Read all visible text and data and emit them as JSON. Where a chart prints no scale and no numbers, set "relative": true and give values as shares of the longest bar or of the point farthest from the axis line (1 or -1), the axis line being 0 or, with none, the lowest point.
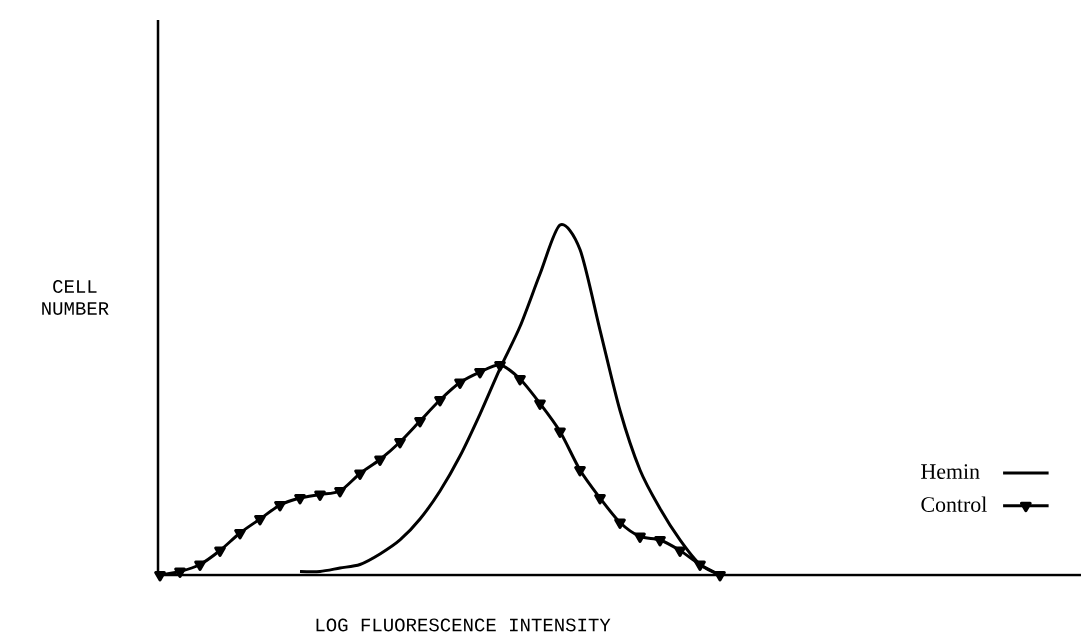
{
  "chart_data": {
    "type": "line",
    "relative": true,
    "xlabel": "LOG FLUORESCENCE INTENSITY",
    "ylabel": "CELL NUMBER",
    "legend": "right",
    "categories": [
      null,
      null,
      null,
      null,
      null,
      null,
      null,
      null,
      null,
      null,
      null,
      null,
      null,
      null,
      null,
      null,
      null,
      null,
      null,
      null,
      null,
      null,
      null,
      null,
      null,
      null,
      null,
      null,
      null,
      null,
      null,
      null,
      null,
      null,
      null,
      null,
      null,
      null,
      null,
      null,
      null,
      null,
      null,
      null,
      null,
      null,
      null
    ],
    "series": [
      {
        "name": "Hemin",
        "color": "#000000",
        "marker": "none",
        "values": [
          null,
          null,
          null,
          null,
          null,
          null,
          null,
          0.01,
          0.01,
          0.02,
          0.03,
          0.06,
          0.1,
          0.16,
          0.24,
          0.34,
          0.46,
          0.59,
          0.71,
          0.86,
          1,
          0.93,
          0.7,
          0.47,
          0.3,
          0.19,
          0.1,
          0.03,
          0,
          null,
          null,
          null,
          null,
          null,
          null,
          null,
          null,
          null,
          null,
          null,
          null,
          null,
          null,
          null,
          null,
          null,
          null
        ]
      },
      {
        "name": "Control",
        "color": "#000000",
        "marker": "triangle",
        "values": [
          0,
          0.01,
          0.03,
          0.07,
          0.12,
          0.16,
          0.2,
          0.22,
          0.23,
          0.24,
          0.29,
          0.33,
          0.38,
          0.44,
          0.5,
          0.55,
          0.58,
          0.6,
          0.56,
          0.49,
          0.41,
          0.3,
          0.22,
          0.15,
          0.11,
          0.1,
          0.07,
          0.03,
          0,
          null,
          null,
          null,
          null,
          null,
          null,
          null,
          null,
          null,
          null,
          null,
          null,
          null,
          null,
          null,
          null,
          null,
          null
        ]
      }
    ]
  }
}
